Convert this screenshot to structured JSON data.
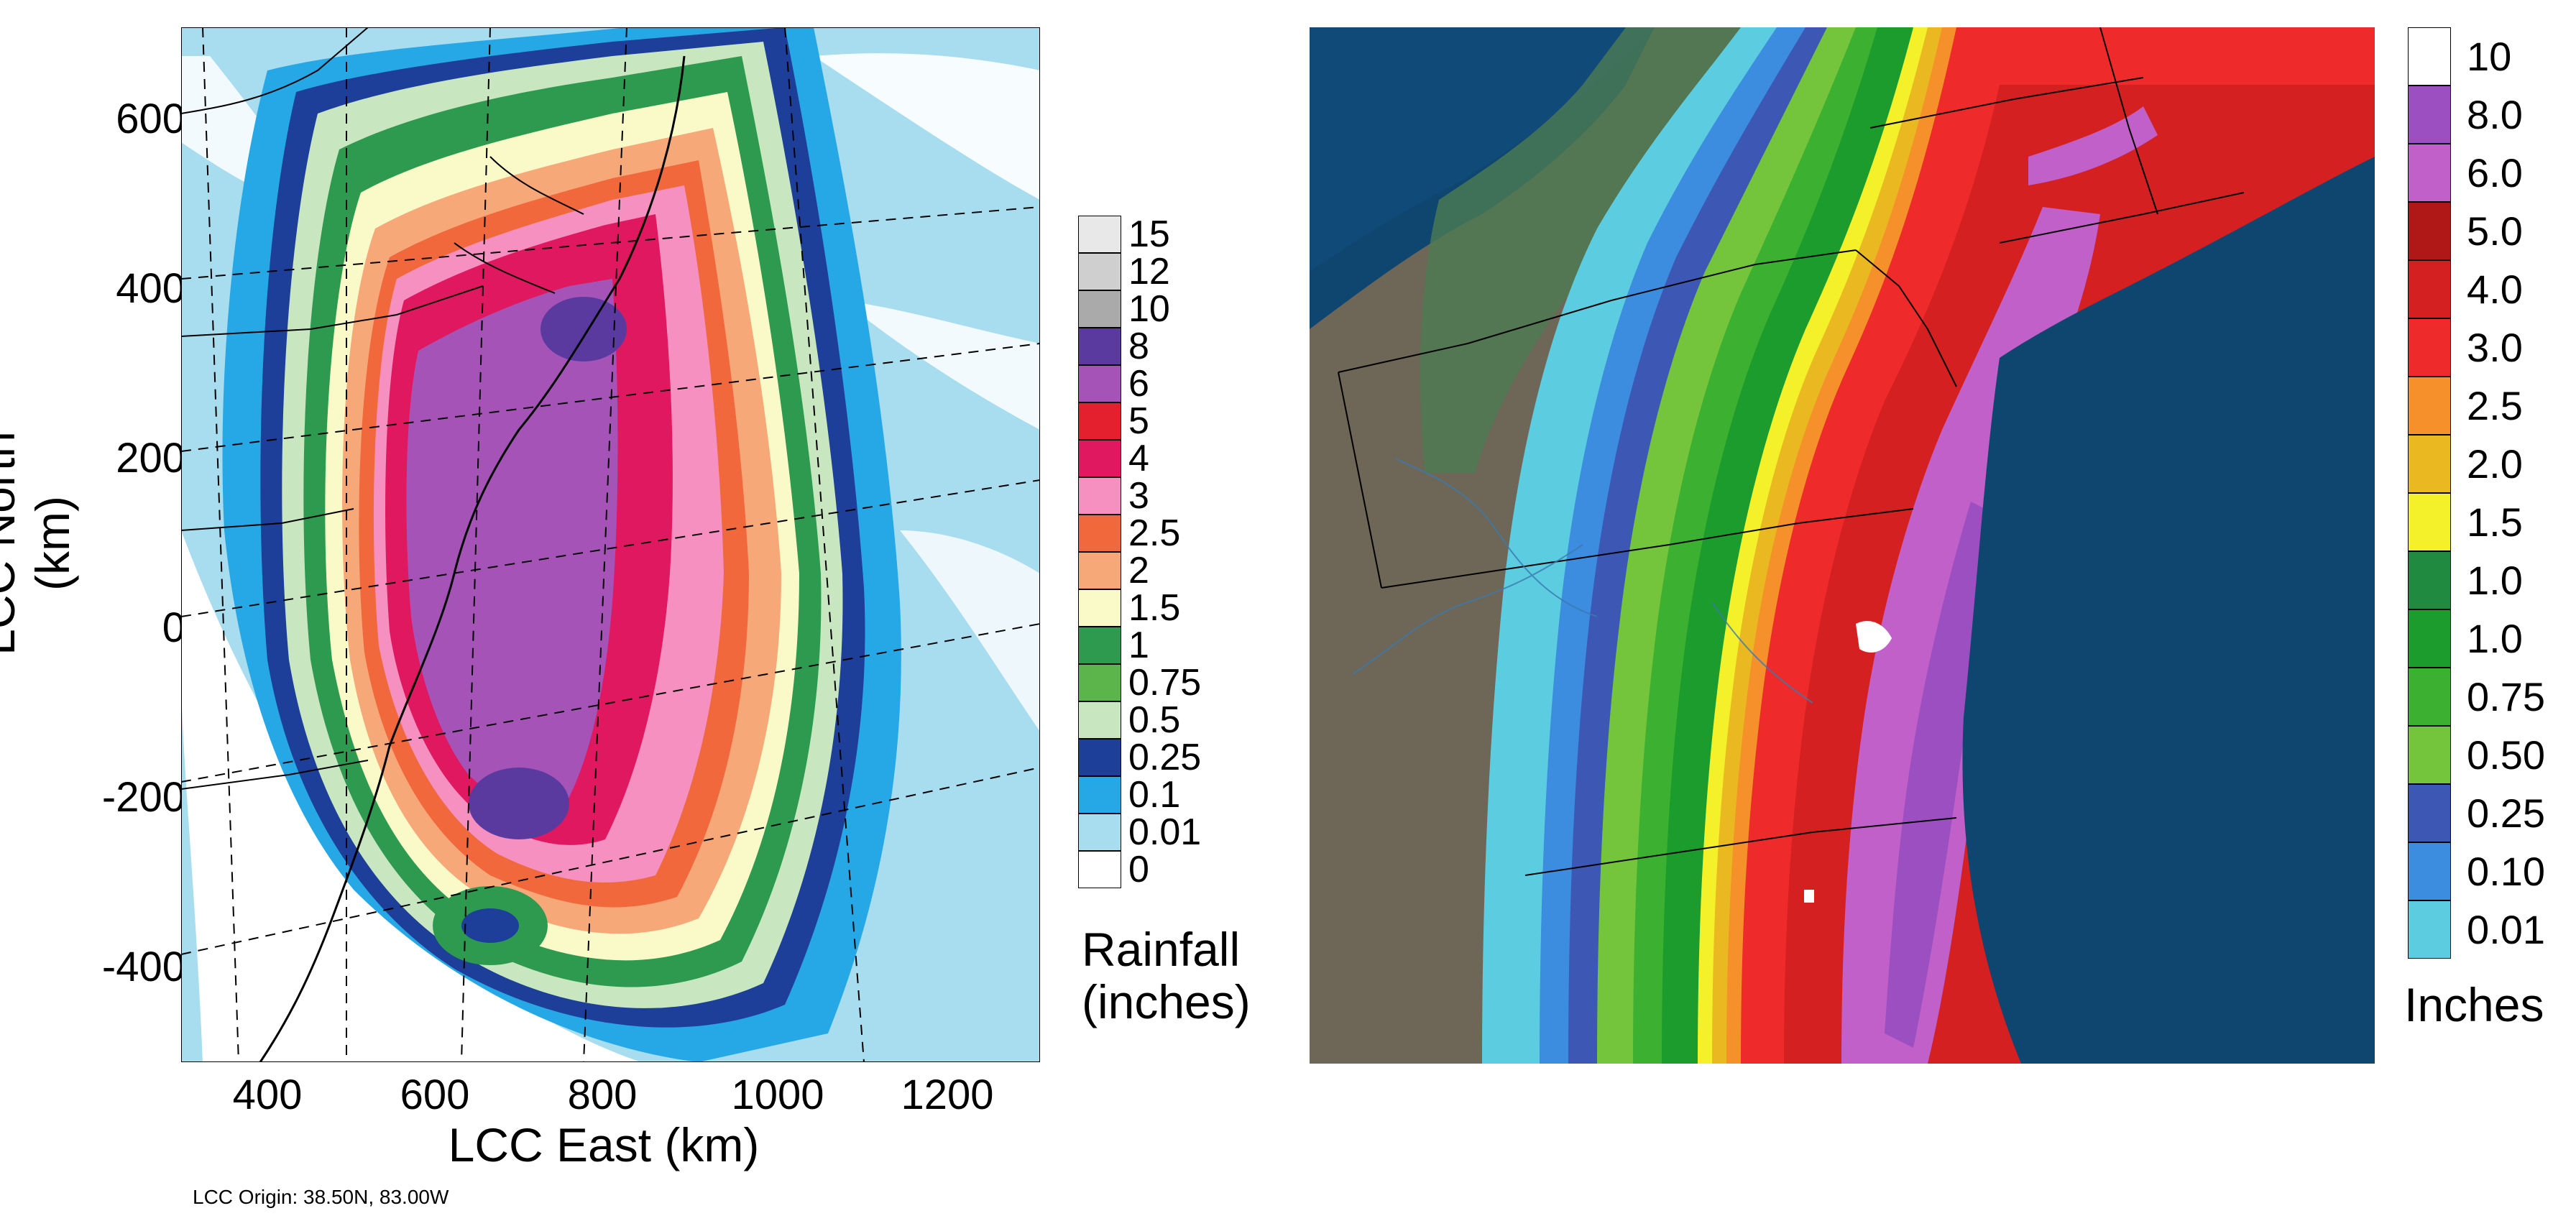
{
  "left_panel": {
    "y_axis_title": "LCC North (km)",
    "x_axis_title": "LCC East (km)",
    "y_ticks": [
      "600",
      "400",
      "200",
      "0",
      "-200",
      "-400"
    ],
    "x_ticks": [
      "400",
      "600",
      "800",
      "1000",
      "1200"
    ],
    "legend_title_line1": "Rainfall",
    "legend_title_line2": "(inches)",
    "legend": [
      {
        "label": "15",
        "color": "#e8e8e8"
      },
      {
        "label": "12",
        "color": "#cfcfcf"
      },
      {
        "label": "10",
        "color": "#aaaaaa"
      },
      {
        "label": "8",
        "color": "#5b3aa0"
      },
      {
        "label": "6",
        "color": "#a653b8"
      },
      {
        "label": "5",
        "color": "#e5202e"
      },
      {
        "label": "4",
        "color": "#e0185f"
      },
      {
        "label": "3",
        "color": "#f590c0"
      },
      {
        "label": "2.5",
        "color": "#f0683c"
      },
      {
        "label": "2",
        "color": "#f7a878"
      },
      {
        "label": "1.5",
        "color": "#fafac8"
      },
      {
        "label": "1",
        "color": "#2e9a50"
      },
      {
        "label": "0.75",
        "color": "#5bb54a"
      },
      {
        "label": "0.5",
        "color": "#c8e6c0"
      },
      {
        "label": "0.25",
        "color": "#1d3f9a"
      },
      {
        "label": "0.1",
        "color": "#27a8e6"
      },
      {
        "label": "0.01",
        "color": "#a8dcef"
      },
      {
        "label": "0",
        "color": "#ffffff"
      }
    ],
    "origin_note": "LCC Origin: 38.50N, 83.00W"
  },
  "right_panel": {
    "legend_title": "Inches",
    "legend": [
      {
        "label": "10",
        "color": "#ffffff"
      },
      {
        "label": "8.0",
        "color": "#9b4fc0"
      },
      {
        "label": "6.0",
        "color": "#c060c8"
      },
      {
        "label": "5.0",
        "color": "#b01818"
      },
      {
        "label": "4.0",
        "color": "#d42020"
      },
      {
        "label": "3.0",
        "color": "#ee2a2a"
      },
      {
        "label": "2.5",
        "color": "#f5902a"
      },
      {
        "label": "2.0",
        "color": "#eab820"
      },
      {
        "label": "1.5",
        "color": "#f4f02a"
      },
      {
        "label": "1.0",
        "color": "#208a40"
      },
      {
        "label": "1.0",
        "color": "#1c9c2c"
      },
      {
        "label": "0.75",
        "color": "#3cb030"
      },
      {
        "label": "0.50",
        "color": "#74c43c"
      },
      {
        "label": "0.25",
        "color": "#3c58b4"
      },
      {
        "label": "0.10",
        "color": "#3c8ce0"
      },
      {
        "label": "0.01",
        "color": "#5ccce0"
      }
    ],
    "colors": {
      "ocean": "#0e4670",
      "land": "#6e6656",
      "lake": "#104a78"
    }
  }
}
